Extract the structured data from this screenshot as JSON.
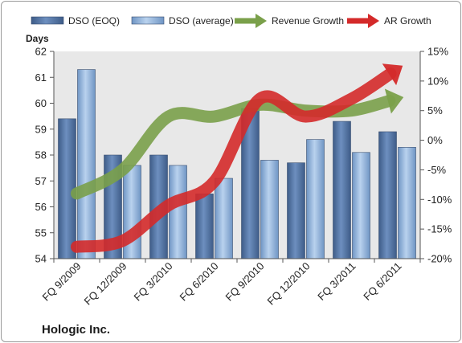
{
  "chart_data": {
    "type": "bar",
    "title": "Hologic Inc.",
    "ylabel": "Days",
    "ylim": [
      54,
      62
    ],
    "yticks": [
      54,
      55,
      56,
      57,
      58,
      59,
      60,
      61,
      62
    ],
    "y2lim": [
      -20,
      15
    ],
    "y2ticks": [
      -20,
      -15,
      -10,
      -5,
      0,
      5,
      10,
      15
    ],
    "y2_format": "percent",
    "categories": [
      "FQ 9/2009",
      "FQ 12/2009",
      "FQ 3/2010",
      "FQ 6/2010",
      "FQ 9/2010",
      "FQ 12/2010",
      "FQ 3/2011",
      "FQ 6/2011"
    ],
    "grid": false,
    "legend": "top",
    "bar_series": [
      {
        "name": "DSO (EOQ)",
        "axis": "left",
        "color": "#4a6b9a",
        "values": [
          59.4,
          58.0,
          58.0,
          56.5,
          59.8,
          57.7,
          59.3,
          58.9
        ]
      },
      {
        "name": "DSO (average)",
        "axis": "left",
        "color": "#8fb0d8",
        "values": [
          61.3,
          57.6,
          57.6,
          57.1,
          57.8,
          58.6,
          58.1,
          58.3
        ]
      }
    ],
    "line_series": [
      {
        "name": "Revenue Growth",
        "axis": "right",
        "color": "#7aa04a",
        "values": [
          -9,
          -5,
          4,
          4,
          6,
          5,
          5,
          7
        ]
      },
      {
        "name": "AR Growth",
        "axis": "right",
        "color": "#d42a2a",
        "values": [
          -18,
          -17,
          -11,
          -7,
          7,
          4,
          7,
          12
        ]
      }
    ],
    "plot_bg": "#e8e8e8"
  }
}
